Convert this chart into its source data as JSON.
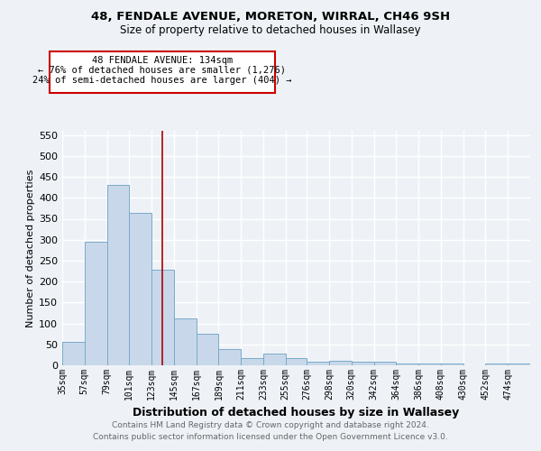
{
  "title1": "48, FENDALE AVENUE, MORETON, WIRRAL, CH46 9SH",
  "title2": "Size of property relative to detached houses in Wallasey",
  "xlabel": "Distribution of detached houses by size in Wallasey",
  "ylabel": "Number of detached properties",
  "footnote1": "Contains HM Land Registry data © Crown copyright and database right 2024.",
  "footnote2": "Contains public sector information licensed under the Open Government Licence v3.0.",
  "annotation_line1": "48 FENDALE AVENUE: 134sqm",
  "annotation_line2": "← 76% of detached houses are smaller (1,276)",
  "annotation_line3": "24% of semi-detached houses are larger (404) →",
  "bar_color": "#c8d8ea",
  "bar_edge_color": "#7aaac8",
  "vline_color": "#aa0000",
  "vline_x": 134,
  "categories": [
    "35sqm",
    "57sqm",
    "79sqm",
    "101sqm",
    "123sqm",
    "145sqm",
    "167sqm",
    "189sqm",
    "211sqm",
    "233sqm",
    "255sqm",
    "276sqm",
    "298sqm",
    "320sqm",
    "342sqm",
    "364sqm",
    "386sqm",
    "408sqm",
    "430sqm",
    "452sqm",
    "474sqm"
  ],
  "bin_edges": [
    35,
    57,
    79,
    101,
    123,
    145,
    167,
    189,
    211,
    233,
    255,
    276,
    298,
    320,
    342,
    364,
    386,
    408,
    430,
    452,
    474,
    496
  ],
  "values": [
    57,
    295,
    430,
    365,
    228,
    113,
    76,
    38,
    18,
    27,
    17,
    8,
    10,
    9,
    8,
    5,
    5,
    5,
    0,
    4,
    4
  ],
  "ylim": [
    0,
    560
  ],
  "yticks": [
    0,
    50,
    100,
    150,
    200,
    250,
    300,
    350,
    400,
    450,
    500,
    550
  ],
  "background_color": "#eef2f7",
  "plot_background": "#eef2f7",
  "grid_color": "#ffffff",
  "annotation_box_color": "#ffffff",
  "annotation_border_color": "#cc0000"
}
